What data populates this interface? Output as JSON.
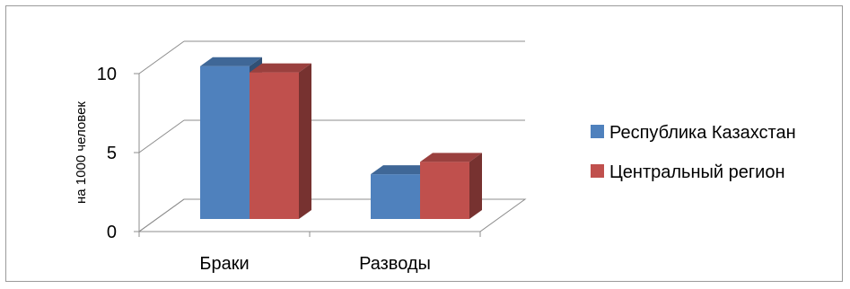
{
  "chart_data": {
    "type": "bar",
    "categories": [
      "Браки",
      "Разводы"
    ],
    "series": [
      {
        "name": "Республика Казахстан",
        "values": [
          9.9,
          2.9
        ],
        "color": "#4f81bd"
      },
      {
        "name": "Центральный регион",
        "values": [
          9.5,
          3.7
        ],
        "color": "#c0504d"
      }
    ],
    "ylabel": "на 1000 человек",
    "yticks": [
      0,
      5,
      10
    ],
    "ylim": [
      0,
      10
    ],
    "legend_position": "right",
    "grid": true,
    "style": "3d-clustered-column"
  }
}
